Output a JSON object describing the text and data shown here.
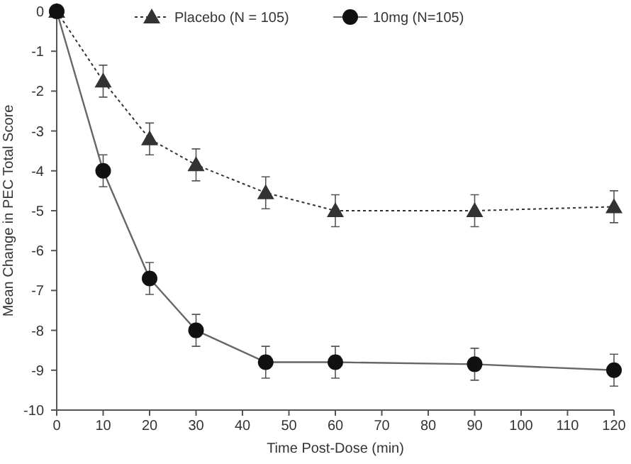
{
  "chart_data": {
    "type": "line",
    "xlabel": "Time Post-Dose (min)",
    "ylabel": "Mean Change in PEC Total Score",
    "x": [
      0,
      10,
      20,
      30,
      45,
      60,
      90,
      120
    ],
    "series": [
      {
        "name": "Placebo (N = 105)",
        "color": "#333333",
        "marker": "triangle",
        "line_style": "dotted",
        "values": [
          0,
          -1.75,
          -3.2,
          -3.85,
          -4.55,
          -5.0,
          -5.0,
          -4.9
        ],
        "errors": [
          null,
          0.4,
          0.4,
          0.4,
          0.4,
          0.4,
          0.4,
          0.4
        ]
      },
      {
        "name": "10mg (N=105)",
        "color": "#111111",
        "marker": "circle",
        "line_style": "solid",
        "values": [
          0,
          -4.0,
          -6.7,
          -8.0,
          -8.8,
          -8.8,
          -8.85,
          -9.0
        ],
        "errors": [
          null,
          0.4,
          0.4,
          0.4,
          0.4,
          0.4,
          0.4,
          0.4
        ]
      }
    ],
    "xlim": [
      0,
      120
    ],
    "xticks": [
      0,
      10,
      20,
      30,
      40,
      50,
      60,
      70,
      80,
      90,
      100,
      110,
      120
    ],
    "ylim": [
      -10,
      0
    ],
    "yticks": [
      0,
      -1,
      -2,
      -3,
      -4,
      -5,
      -6,
      -7,
      -8,
      -9,
      -10
    ],
    "grid": false,
    "legend": "top"
  }
}
